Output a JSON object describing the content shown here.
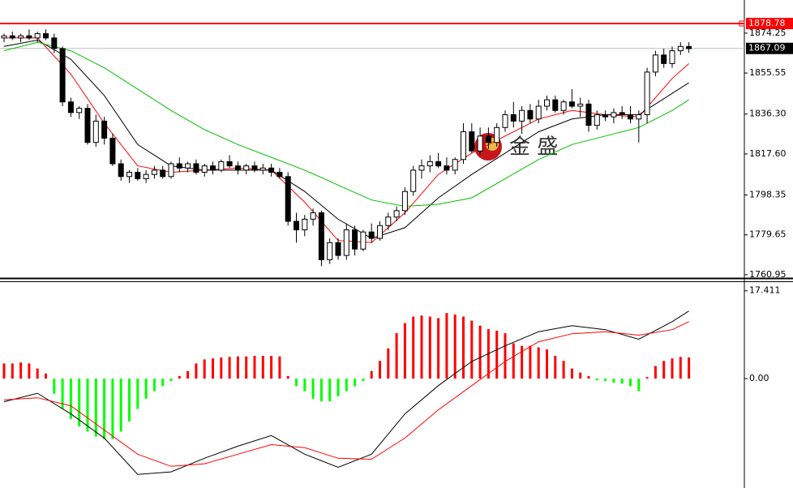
{
  "chart_data": [
    {
      "type": "candlestick",
      "ylim": [
        1759.4,
        1889.8
      ],
      "yticks": [
        1874.25,
        1855.55,
        {
          "value": 1836.3,
          "label": "1836.30"
        },
        {
          "value": 1817.6,
          "label": "1817.60"
        },
        1798.35,
        1779.65,
        1760.95
      ],
      "up_color": "#ffffff",
      "down_color": "#000000",
      "edge_color": "#000000",
      "ohlc": [
        [
          1872,
          1874,
          1870,
          1873
        ],
        [
          1873,
          1875,
          1871,
          1872
        ],
        [
          1872,
          1874,
          1870,
          1873
        ],
        [
          1873,
          1876,
          1871,
          1872
        ],
        [
          1872,
          1875,
          1870,
          1874
        ],
        [
          1874,
          1876,
          1871,
          1872
        ],
        [
          1872,
          1874,
          1865,
          1867
        ],
        [
          1867,
          1868,
          1840,
          1842
        ],
        [
          1842,
          1844,
          1835,
          1837
        ],
        [
          1837,
          1840,
          1834,
          1839
        ],
        [
          1839,
          1841,
          1822,
          1823
        ],
        [
          1823,
          1836,
          1821,
          1833
        ],
        [
          1833,
          1835,
          1822,
          1825
        ],
        [
          1825,
          1827,
          1812,
          1813
        ],
        [
          1813,
          1815,
          1805,
          1807
        ],
        [
          1807,
          1810,
          1804,
          1809
        ],
        [
          1809,
          1811,
          1805,
          1806
        ],
        [
          1806,
          1810,
          1804,
          1808
        ],
        [
          1808,
          1812,
          1806,
          1810
        ],
        [
          1810,
          1812,
          1806,
          1807
        ],
        [
          1807,
          1814,
          1806,
          1813
        ],
        [
          1813,
          1816,
          1809,
          1811
        ],
        [
          1811,
          1814,
          1809,
          1813
        ],
        [
          1813,
          1815,
          1808,
          1809
        ],
        [
          1809,
          1813,
          1807,
          1812
        ],
        [
          1812,
          1814,
          1808,
          1810
        ],
        [
          1810,
          1815,
          1809,
          1814
        ],
        [
          1814,
          1817,
          1811,
          1812
        ],
        [
          1812,
          1814,
          1808,
          1810
        ],
        [
          1810,
          1813,
          1808,
          1812
        ],
        [
          1812,
          1814,
          1809,
          1810
        ],
        [
          1810,
          1813,
          1808,
          1811
        ],
        [
          1811,
          1813,
          1807,
          1809
        ],
        [
          1809,
          1811,
          1806,
          1807
        ],
        [
          1807,
          1809,
          1784,
          1786
        ],
        [
          1786,
          1790,
          1776,
          1782
        ],
        [
          1782,
          1789,
          1779,
          1787
        ],
        [
          1787,
          1792,
          1784,
          1790
        ],
        [
          1790,
          1791,
          1765,
          1768
        ],
        [
          1768,
          1778,
          1766,
          1776
        ],
        [
          1776,
          1778,
          1768,
          1770
        ],
        [
          1770,
          1785,
          1768,
          1782
        ],
        [
          1782,
          1784,
          1770,
          1773
        ],
        [
          1773,
          1782,
          1772,
          1781
        ],
        [
          1781,
          1785,
          1776,
          1778
        ],
        [
          1778,
          1786,
          1777,
          1784
        ],
        [
          1784,
          1790,
          1782,
          1788
        ],
        [
          1788,
          1793,
          1786,
          1791
        ],
        [
          1791,
          1802,
          1789,
          1800
        ],
        [
          1800,
          1812,
          1798,
          1810
        ],
        [
          1810,
          1815,
          1806,
          1812
        ],
        [
          1812,
          1817,
          1809,
          1814
        ],
        [
          1814,
          1818,
          1811,
          1812
        ],
        [
          1812,
          1816,
          1808,
          1810
        ],
        [
          1810,
          1816,
          1808,
          1815
        ],
        [
          1815,
          1832,
          1813,
          1828
        ],
        [
          1828,
          1832,
          1818,
          1819
        ],
        [
          1819,
          1830,
          1817,
          1826
        ],
        [
          1826,
          1830,
          1820,
          1823
        ],
        [
          1823,
          1832,
          1821,
          1830
        ],
        [
          1830,
          1838,
          1828,
          1836
        ],
        [
          1836,
          1842,
          1830,
          1833
        ],
        [
          1833,
          1840,
          1827,
          1838
        ],
        [
          1838,
          1841,
          1832,
          1834
        ],
        [
          1834,
          1843,
          1832,
          1840
        ],
        [
          1840,
          1845,
          1838,
          1843
        ],
        [
          1843,
          1845,
          1837,
          1838
        ],
        [
          1838,
          1843,
          1836,
          1842
        ],
        [
          1842,
          1848,
          1839,
          1840
        ],
        [
          1840,
          1844,
          1835,
          1841
        ],
        [
          1841,
          1843,
          1828,
          1831
        ],
        [
          1831,
          1838,
          1829,
          1836
        ],
        [
          1836,
          1838,
          1833,
          1835
        ],
        [
          1835,
          1839,
          1832,
          1837
        ],
        [
          1837,
          1840,
          1834,
          1836
        ],
        [
          1836,
          1840,
          1832,
          1834
        ],
        [
          1834,
          1838,
          1823,
          1836
        ],
        [
          1836,
          1858,
          1832,
          1856
        ],
        [
          1856,
          1866,
          1854,
          1864
        ],
        [
          1864,
          1867,
          1858,
          1860
        ],
        [
          1860,
          1868,
          1858,
          1866
        ],
        [
          1866,
          1870,
          1864,
          1868
        ],
        [
          1868,
          1870,
          1865,
          1867
        ]
      ],
      "series": [
        {
          "color": "#ff0000",
          "x": [
            0,
            4,
            8,
            12,
            16,
            20,
            24,
            28,
            32,
            36,
            40,
            44,
            48,
            52,
            56,
            60,
            64,
            68,
            72,
            76,
            80,
            82
          ],
          "values": [
            1872,
            1872,
            1855,
            1832,
            1812,
            1809,
            1810,
            1811,
            1810,
            1795,
            1777,
            1776,
            1790,
            1808,
            1818,
            1826,
            1834,
            1838,
            1836,
            1835,
            1853,
            1860
          ]
        },
        {
          "color": "#000000",
          "x": [
            0,
            4,
            8,
            12,
            16,
            20,
            24,
            28,
            32,
            36,
            40,
            44,
            48,
            52,
            56,
            60,
            64,
            68,
            72,
            76,
            80,
            82
          ],
          "values": [
            1868,
            1871,
            1862,
            1845,
            1822,
            1812,
            1810,
            1810,
            1810,
            1800,
            1787,
            1778,
            1783,
            1797,
            1808,
            1818,
            1828,
            1834,
            1836,
            1836,
            1846,
            1851
          ]
        },
        {
          "color": "#00c000",
          "x": [
            0,
            4,
            8,
            12,
            16,
            20,
            24,
            28,
            32,
            36,
            40,
            44,
            48,
            52,
            56,
            60,
            64,
            68,
            72,
            76,
            80,
            82
          ],
          "values": [
            1866,
            1870,
            1866,
            1858,
            1848,
            1838,
            1829,
            1822,
            1816,
            1810,
            1803,
            1796,
            1793,
            1794,
            1797,
            1806,
            1815,
            1822,
            1826,
            1830,
            1838,
            1843
          ]
        }
      ],
      "hline": {
        "value": 1878.78,
        "color": "#ff0000"
      },
      "last_price": 1867.09,
      "watermark": "金 盛"
    },
    {
      "type": "macd",
      "ylim": [
        -21.7,
        19.3
      ],
      "yticks": [
        17.411,
        {
          "value": 0,
          "label": "0.00"
        }
      ],
      "up_color": "#ff0000",
      "down_color": "#00ff00",
      "histogram": [
        3,
        3,
        3.2,
        3,
        2,
        1,
        -3,
        -6,
        -8,
        -9.5,
        -10.5,
        -11.5,
        -12,
        -12,
        -10.5,
        -8.5,
        -6,
        -4,
        -2.5,
        -1.5,
        -0.5,
        0.5,
        1.5,
        3,
        3.8,
        4,
        4.2,
        4.3,
        4.4,
        4.4,
        4.5,
        4.5,
        4.5,
        4.4,
        0.5,
        -1.5,
        -2.5,
        -4,
        -4.5,
        -4.5,
        -3.5,
        -2.5,
        -1.5,
        -0.5,
        1.5,
        3.5,
        6,
        9,
        11,
        12.3,
        12.5,
        12.3,
        12,
        13,
        12.7,
        12.3,
        11.5,
        10.5,
        9.8,
        9.5,
        9,
        7,
        6.5,
        6.5,
        6.2,
        5.8,
        4.5,
        3.5,
        2,
        1.2,
        0.5,
        -0.3,
        -0.5,
        -0.8,
        -1,
        -1.5,
        -2.5,
        0.3,
        2.5,
        3.5,
        4,
        4.3,
        4.2
      ],
      "series": [
        {
          "color": "#000000",
          "x": [
            0,
            4,
            8,
            12,
            16,
            20,
            24,
            28,
            32,
            36,
            40,
            44,
            48,
            52,
            56,
            60,
            64,
            68,
            72,
            76,
            80,
            82
          ],
          "values": [
            -4.6,
            -2.9,
            -7.0,
            -11.8,
            -19.0,
            -18.5,
            -15.8,
            -13.4,
            -11.3,
            -15.0,
            -17.6,
            -15.0,
            -7.0,
            -1.4,
            3.4,
            6.5,
            9.3,
            10.5,
            9.7,
            7.8,
            11.3,
            13.4
          ]
        },
        {
          "color": "#ff0000",
          "x": [
            0,
            4,
            8,
            12,
            16,
            20,
            24,
            28,
            32,
            36,
            40,
            44,
            48,
            52,
            56,
            60,
            64,
            68,
            72,
            76,
            80,
            82
          ],
          "values": [
            -4.2,
            -3.8,
            -5.4,
            -10.2,
            -15.0,
            -17.4,
            -16.9,
            -15.0,
            -13.1,
            -13.7,
            -15.8,
            -16.0,
            -11.8,
            -6.2,
            -1.4,
            3.4,
            7.3,
            8.9,
            9.3,
            8.6,
            9.7,
            11.3
          ]
        }
      ]
    }
  ]
}
